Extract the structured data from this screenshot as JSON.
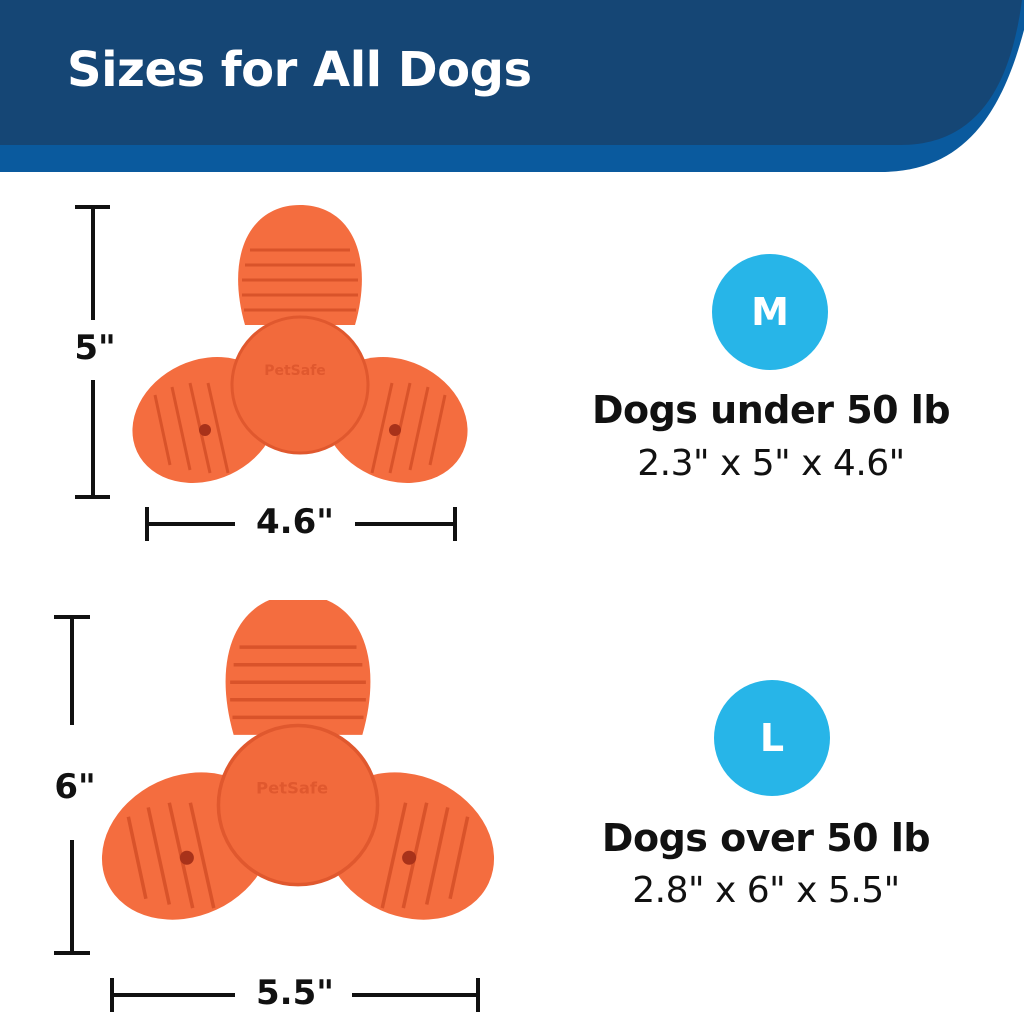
{
  "header": {
    "title": "Sizes for All Dogs",
    "colors": {
      "dark": "#154675",
      "band": "#0a5a9e"
    }
  },
  "accent_color": "#27b5e8",
  "toy_color": "#f46d3f",
  "toy_logo": "PetSafe",
  "sizes": [
    {
      "badge": "M",
      "description": "Dogs under 50 lb",
      "dimensions": "2.3\" x 5\" x 4.6\"",
      "height_label": "5\"",
      "width_label": "4.6\""
    },
    {
      "badge": "L",
      "description": "Dogs over 50 lb",
      "dimensions": "2.8\" x 6\" x 5.5\"",
      "height_label": "6\"",
      "width_label": "5.5\""
    }
  ]
}
